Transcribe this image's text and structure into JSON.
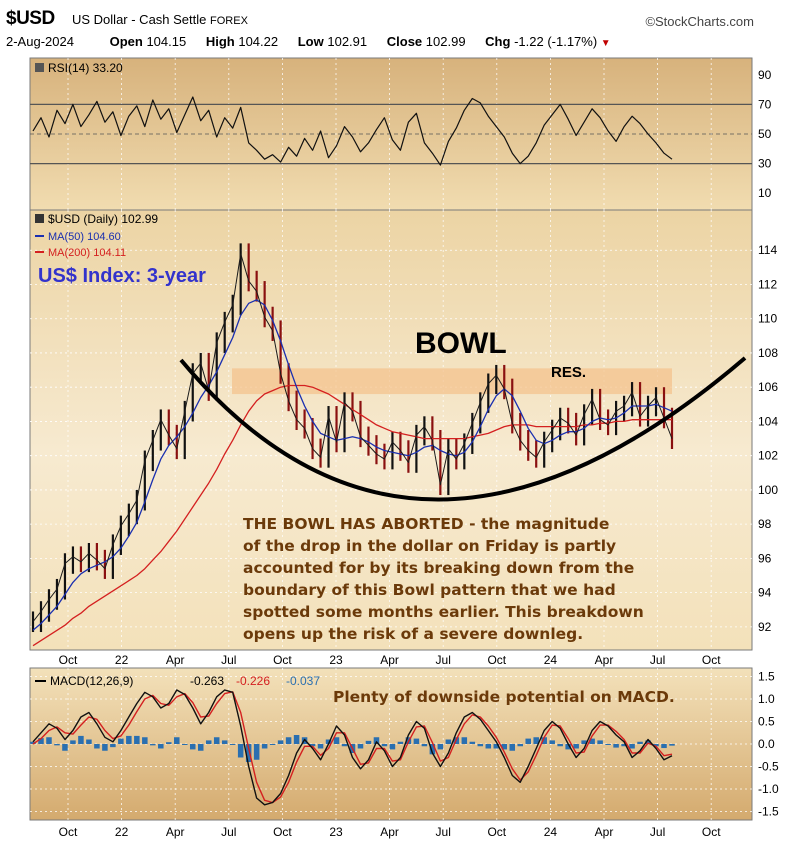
{
  "header": {
    "symbol": "$USD",
    "description": "US Dollar - Cash Settle",
    "exchange": "FOREX",
    "brand": "©StockCharts.com",
    "date": "2-Aug-2024",
    "open_label": "Open",
    "open": "104.15",
    "high_label": "High",
    "high": "104.22",
    "low_label": "Low",
    "low": "102.91",
    "close_label": "Close",
    "close": "102.99",
    "chg_label": "Chg",
    "chg": "-1.22 (-1.17%)"
  },
  "colors": {
    "panel_bg": "#f3e1b9",
    "panel_bg_dark": "#d9b37a",
    "ma50": "#1a2fb0",
    "ma200": "#d42020",
    "candle": "#1a1a1a",
    "bowl": "#000000",
    "annotation_text": "#6b3a0a",
    "title_annotation": "#3333cc",
    "resistance_band": "#f4c38d",
    "macd_hist": "#2a6fb0"
  },
  "chart_data": [
    {
      "type": "line",
      "panel": "rsi",
      "legend": "RSI(14) 33.20",
      "ylim": [
        0,
        100
      ],
      "y_ticks": [
        "90",
        "70",
        "50",
        "30",
        "10"
      ],
      "reference_lines": [
        70,
        50,
        30
      ],
      "series": [
        {
          "values": [
            52,
            61,
            48,
            66,
            57,
            70,
            55,
            63,
            72,
            58,
            65,
            49,
            62,
            69,
            55,
            73,
            60,
            67,
            51,
            63,
            75,
            59,
            66,
            48,
            61,
            54,
            68,
            44,
            39,
            33,
            36,
            31,
            41,
            35,
            47,
            39,
            52,
            34,
            42,
            55,
            48,
            38,
            44,
            53,
            61,
            46,
            39,
            58,
            64,
            44,
            37,
            29,
            45,
            54,
            66,
            74,
            71,
            62,
            55,
            48,
            37,
            30,
            35,
            44,
            56,
            63,
            70,
            60,
            49,
            58,
            67,
            61,
            52,
            45,
            55,
            62,
            57,
            50,
            44,
            37,
            33
          ]
        }
      ]
    },
    {
      "type": "line",
      "panel": "price",
      "legend": [
        "$USD (Daily) 102.99",
        "MA(50) 104.60",
        "MA(200) 104.11"
      ],
      "annotation_title": "US$ Index: 3-year",
      "pattern_label": "BOWL",
      "resistance_label": "RES.",
      "resistance_band": [
        105.6,
        107.1
      ],
      "ylim": [
        91,
        116
      ],
      "y_ticks": [
        "114",
        "112",
        "110",
        "108",
        "106",
        "104",
        "102",
        "100",
        "98",
        "96",
        "94",
        "92"
      ],
      "x_ticks": [
        "Oct",
        "22",
        "Apr",
        "Jul",
        "Oct",
        "23",
        "Apr",
        "Jul",
        "Oct",
        "24",
        "Apr",
        "Jul",
        "Oct"
      ],
      "series": [
        {
          "name": "$USD (Daily)",
          "values": [
            92.3,
            92.9,
            93.6,
            94.2,
            95.7,
            96.1,
            95.8,
            96.3,
            95.9,
            95.4,
            96.8,
            97.9,
            98.6,
            99.4,
            101.7,
            102.9,
            104.1,
            103.2,
            102.4,
            104.6,
            106.8,
            107.4,
            105.8,
            108.6,
            109.8,
            110.8,
            113.8,
            112.2,
            111.6,
            110.1,
            109.3,
            106.8,
            105.2,
            104.1,
            103.6,
            102.4,
            101.9,
            104.3,
            102.8,
            105.1,
            104.6,
            103.1,
            102.6,
            102.1,
            101.8,
            102.8,
            102.3,
            101.6,
            103.2,
            103.7,
            102.9,
            100.3,
            102.4,
            101.8,
            102.7,
            103.9,
            105.1,
            106.2,
            106.7,
            105.9,
            103.9,
            102.9,
            102.3,
            101.9,
            102.8,
            103.5,
            104.2,
            103.9,
            103.2,
            104.4,
            105.3,
            104.1,
            103.8,
            104.6,
            104.9,
            105.7,
            104.3,
            104.9,
            105.4,
            104.2,
            102.99
          ]
        },
        {
          "name": "MA(50)",
          "values": [
            91.8,
            92.2,
            92.7,
            93.2,
            93.9,
            94.6,
            95.1,
            95.4,
            95.6,
            95.8,
            96.1,
            96.6,
            97.3,
            98.1,
            99.3,
            100.6,
            101.8,
            102.6,
            103.1,
            103.7,
            104.5,
            105.4,
            106.1,
            106.9,
            107.9,
            108.9,
            110.2,
            110.9,
            111.1,
            110.8,
            109.9,
            108.7,
            107.3,
            106.0,
            104.9,
            104.0,
            103.3,
            103.1,
            102.9,
            103.0,
            103.1,
            103.0,
            102.8,
            102.5,
            102.3,
            102.2,
            102.1,
            102.0,
            102.2,
            102.5,
            102.6,
            102.3,
            102.1,
            102.0,
            102.2,
            102.8,
            103.7,
            104.7,
            105.5,
            105.9,
            105.5,
            104.6,
            103.6,
            102.9,
            102.7,
            102.9,
            103.2,
            103.4,
            103.4,
            103.6,
            104.0,
            104.2,
            104.1,
            104.2,
            104.5,
            104.9,
            104.9,
            104.9,
            105.0,
            104.8,
            104.6
          ]
        },
        {
          "name": "MA(200)",
          "values": [
            90.9,
            91.2,
            91.5,
            91.8,
            92.1,
            92.5,
            92.8,
            93.2,
            93.5,
            93.8,
            94.1,
            94.4,
            94.7,
            95.0,
            95.4,
            95.9,
            96.4,
            97.0,
            97.6,
            98.3,
            99.0,
            99.7,
            100.4,
            101.2,
            102.1,
            102.9,
            103.8,
            104.6,
            105.2,
            105.6,
            105.8,
            106.0,
            106.1,
            106.1,
            106.1,
            106.0,
            105.8,
            105.6,
            105.3,
            105.0,
            104.7,
            104.4,
            104.1,
            103.8,
            103.6,
            103.4,
            103.3,
            103.2,
            103.1,
            103.0,
            103.0,
            103.0,
            103.0,
            103.0,
            103.0,
            103.1,
            103.2,
            103.3,
            103.5,
            103.7,
            103.8,
            103.8,
            103.8,
            103.7,
            103.7,
            103.7,
            103.7,
            103.7,
            103.7,
            103.8,
            103.8,
            103.9,
            103.9,
            104.0,
            104.0,
            104.1,
            104.1,
            104.1,
            104.1,
            104.1,
            104.11
          ]
        }
      ]
    },
    {
      "type": "line",
      "panel": "macd",
      "legend_name": "MACD(12,26,9)",
      "legend_values": [
        "-0.263",
        "-0.226",
        "-0.037"
      ],
      "annotation": "Plenty of downside potential on MACD.",
      "ylim": [
        -1.6,
        1.6
      ],
      "y_ticks": [
        "1.5",
        "1.0",
        "0.5",
        "0.0",
        "-0.5",
        "-1.0",
        "-1.5"
      ],
      "x_ticks": [
        "Oct",
        "22",
        "Apr",
        "Jul",
        "Oct",
        "23",
        "Apr",
        "Jul",
        "Oct",
        "24",
        "Apr",
        "Jul",
        "Oct"
      ],
      "series": [
        {
          "name": "MACD",
          "values": [
            0.05,
            0.25,
            0.45,
            0.35,
            0.1,
            0.3,
            0.6,
            0.7,
            0.45,
            0.15,
            0.05,
            0.3,
            0.6,
            0.9,
            1.15,
            1.05,
            0.8,
            0.9,
            1.2,
            1.1,
            0.8,
            0.45,
            0.7,
            1.05,
            1.2,
            1.15,
            0.4,
            -0.5,
            -1.2,
            -1.35,
            -1.3,
            -1.1,
            -0.7,
            -0.2,
            0.1,
            -0.1,
            -0.35,
            0.0,
            0.4,
            0.2,
            -0.3,
            -0.55,
            -0.35,
            0.05,
            -0.15,
            -0.5,
            -0.3,
            0.2,
            0.5,
            0.35,
            -0.2,
            -0.5,
            -0.2,
            0.25,
            0.6,
            0.7,
            0.55,
            0.3,
            0.05,
            -0.3,
            -0.7,
            -0.85,
            -0.5,
            -0.1,
            0.3,
            0.5,
            0.35,
            0.0,
            -0.3,
            -0.1,
            0.3,
            0.5,
            0.4,
            0.2,
            0.05,
            -0.3,
            -0.15,
            0.1,
            -0.1,
            -0.35,
            -0.263
          ]
        },
        {
          "name": "Signal",
          "values": [
            0.0,
            0.12,
            0.3,
            0.38,
            0.25,
            0.22,
            0.42,
            0.6,
            0.55,
            0.3,
            0.12,
            0.18,
            0.42,
            0.72,
            1.0,
            1.08,
            0.9,
            0.86,
            1.05,
            1.12,
            0.92,
            0.6,
            0.62,
            0.9,
            1.12,
            1.16,
            0.7,
            -0.1,
            -0.85,
            -1.25,
            -1.3,
            -1.18,
            -0.85,
            -0.4,
            -0.05,
            -0.05,
            -0.25,
            -0.1,
            0.25,
            0.25,
            -0.1,
            -0.45,
            -0.42,
            -0.1,
            -0.1,
            -0.38,
            -0.35,
            0.05,
            0.38,
            0.4,
            0.03,
            -0.38,
            -0.3,
            0.1,
            0.45,
            0.65,
            0.6,
            0.4,
            0.15,
            -0.18,
            -0.55,
            -0.8,
            -0.62,
            -0.25,
            0.15,
            0.42,
            0.4,
            0.12,
            -0.2,
            -0.18,
            0.18,
            0.42,
            0.42,
            0.28,
            0.1,
            -0.2,
            -0.2,
            0.02,
            -0.05,
            -0.26,
            -0.226
          ]
        },
        {
          "name": "Histogram",
          "values": [
            0.05,
            0.13,
            0.15,
            -0.03,
            -0.15,
            0.08,
            0.18,
            0.1,
            -0.1,
            -0.15,
            -0.07,
            0.12,
            0.18,
            0.18,
            0.15,
            -0.03,
            -0.1,
            0.04,
            0.15,
            -0.02,
            -0.12,
            -0.15,
            0.08,
            0.15,
            0.08,
            -0.01,
            -0.3,
            -0.4,
            -0.35,
            -0.1,
            0.0,
            0.08,
            0.15,
            0.2,
            0.15,
            -0.05,
            -0.1,
            0.1,
            0.15,
            -0.05,
            -0.2,
            -0.1,
            0.07,
            0.15,
            -0.05,
            -0.12,
            0.05,
            0.15,
            0.12,
            -0.05,
            -0.23,
            -0.12,
            0.1,
            0.15,
            0.15,
            0.05,
            -0.05,
            -0.1,
            -0.1,
            -0.12,
            -0.15,
            -0.05,
            0.12,
            0.15,
            0.15,
            0.08,
            -0.05,
            -0.12,
            -0.1,
            0.08,
            0.12,
            0.08,
            -0.02,
            -0.08,
            -0.05,
            -0.1,
            0.05,
            0.08,
            -0.05,
            -0.09,
            -0.037
          ]
        }
      ]
    }
  ],
  "annotation": {
    "lines": [
      "THE BOWL HAS ABORTED - the magnitude",
      "of the drop in the dollar on Friday is partly",
      "accounted for by its breaking down from the",
      "boundary of this Bowl pattern that we had",
      "spotted some months earlier. This breakdown",
      "opens up the risk of a severe downleg."
    ]
  }
}
